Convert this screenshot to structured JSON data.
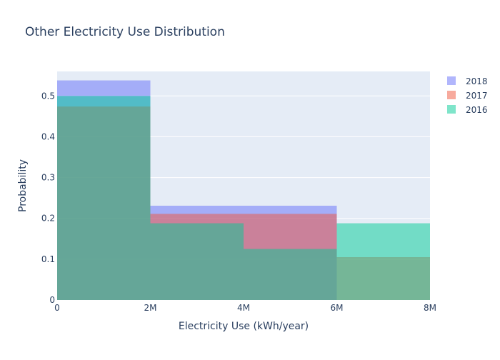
{
  "chart_data": {
    "type": "histogram",
    "title": "Other Electricity Use Distribution",
    "xlabel": "Electricity Use (kWh/year)",
    "ylabel": "Probability",
    "xlim": [
      0,
      8000000
    ],
    "ylim": [
      0,
      0.56
    ],
    "x_ticks": [
      {
        "value": 0,
        "label": "0"
      },
      {
        "value": 2000000,
        "label": "2M"
      },
      {
        "value": 4000000,
        "label": "4M"
      },
      {
        "value": 6000000,
        "label": "6M"
      },
      {
        "value": 8000000,
        "label": "8M"
      }
    ],
    "y_ticks": [
      {
        "value": 0,
        "label": "0"
      },
      {
        "value": 0.1,
        "label": "0.1"
      },
      {
        "value": 0.2,
        "label": "0.2"
      },
      {
        "value": 0.3,
        "label": "0.3"
      },
      {
        "value": 0.4,
        "label": "0.4"
      },
      {
        "value": 0.5,
        "label": "0.5"
      }
    ],
    "grid": true,
    "legend_position": "top-right",
    "series": [
      {
        "name": "2018",
        "color": "#636efa",
        "bins": [
          {
            "x0": 0,
            "x1": 2000000,
            "value": 0.538
          },
          {
            "x0": 2000000,
            "x1": 6000000,
            "value": 0.231
          }
        ]
      },
      {
        "name": "2017",
        "color": "#ef553b",
        "bins": [
          {
            "x0": 0,
            "x1": 2000000,
            "value": 0.474
          },
          {
            "x0": 2000000,
            "x1": 6000000,
            "value": 0.211
          },
          {
            "x0": 6000000,
            "x1": 8000000,
            "value": 0.105
          }
        ]
      },
      {
        "name": "2016",
        "color": "#00cc96",
        "bins": [
          {
            "x0": 0,
            "x1": 2000000,
            "value": 0.5
          },
          {
            "x0": 2000000,
            "x1": 4000000,
            "value": 0.188
          },
          {
            "x0": 4000000,
            "x1": 6000000,
            "value": 0.125
          },
          {
            "x0": 6000000,
            "x1": 8000000,
            "value": 0.188
          }
        ]
      }
    ],
    "legend_order": [
      "2018",
      "2017",
      "2016"
    ],
    "bar_opacity": 0.5,
    "plot_bg_color": "#e5ecf6",
    "text_color": "#2a3f5f"
  }
}
